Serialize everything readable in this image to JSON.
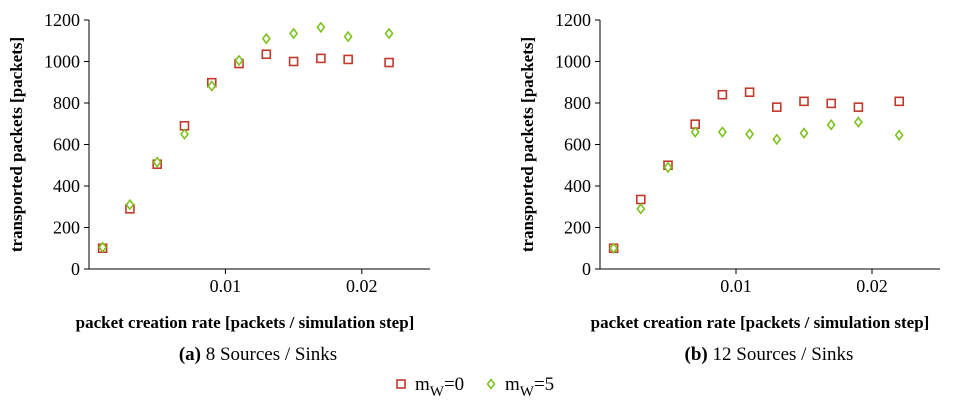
{
  "legend": {
    "items": [
      {
        "label": "m",
        "sub": "W",
        "suffix": "=0",
        "color": "#c0392b",
        "marker": "square-icon"
      },
      {
        "label": "m",
        "sub": "W",
        "suffix": "=5",
        "color": "#7dc21e",
        "marker": "diamond-icon"
      }
    ]
  },
  "chart_data": [
    {
      "type": "scatter",
      "caption_letter": "(a)",
      "caption_text": "8 Sources / Sinks",
      "xlabel": "packet creation rate [packets / simulation step]",
      "ylabel": "transported packets [packets]",
      "xlim": [
        0,
        0.025
      ],
      "ylim": [
        0,
        1200
      ],
      "xticks": [
        0.01,
        0.02
      ],
      "xtick_labels": [
        "0.01",
        "0.02"
      ],
      "yticks": [
        0,
        200,
        400,
        600,
        800,
        1000,
        1200
      ],
      "ytick_labels": [
        "0",
        "200",
        "400",
        "600",
        "800",
        "1000",
        "1200"
      ],
      "grid": false,
      "series": [
        {
          "name": "mW=0",
          "marker": "square",
          "color": "#c0392b",
          "x": [
            0.001,
            0.003,
            0.005,
            0.007,
            0.009,
            0.011,
            0.013,
            0.015,
            0.017,
            0.019,
            0.022
          ],
          "y": [
            100,
            290,
            505,
            690,
            898,
            990,
            1035,
            1000,
            1015,
            1010,
            995
          ]
        },
        {
          "name": "mW=5",
          "marker": "diamond",
          "color": "#7dc21e",
          "x": [
            0.001,
            0.003,
            0.005,
            0.007,
            0.009,
            0.011,
            0.013,
            0.015,
            0.017,
            0.019,
            0.022
          ],
          "y": [
            105,
            310,
            515,
            650,
            882,
            1005,
            1110,
            1135,
            1165,
            1120,
            1135
          ]
        }
      ]
    },
    {
      "type": "scatter",
      "caption_letter": "(b)",
      "caption_text": "12 Sources / Sinks",
      "xlabel": "packet creation rate [packets / simulation step]",
      "ylabel": "transported packets [packets]",
      "xlim": [
        0,
        0.025
      ],
      "ylim": [
        0,
        1200
      ],
      "xticks": [
        0.01,
        0.02
      ],
      "xtick_labels": [
        "0.01",
        "0.02"
      ],
      "yticks": [
        0,
        200,
        400,
        600,
        800,
        1000,
        1200
      ],
      "ytick_labels": [
        "0",
        "200",
        "400",
        "600",
        "800",
        "1000",
        "1200"
      ],
      "grid": false,
      "series": [
        {
          "name": "mW=0",
          "marker": "square",
          "color": "#c0392b",
          "x": [
            0.001,
            0.003,
            0.005,
            0.007,
            0.009,
            0.011,
            0.013,
            0.015,
            0.017,
            0.019,
            0.022
          ],
          "y": [
            100,
            335,
            500,
            698,
            840,
            852,
            780,
            808,
            798,
            780,
            808
          ]
        },
        {
          "name": "mW=5",
          "marker": "diamond",
          "color": "#7dc21e",
          "x": [
            0.001,
            0.003,
            0.005,
            0.007,
            0.009,
            0.011,
            0.013,
            0.015,
            0.017,
            0.019,
            0.022
          ],
          "y": [
            100,
            290,
            490,
            660,
            660,
            650,
            625,
            655,
            695,
            708,
            645
          ]
        }
      ]
    }
  ]
}
